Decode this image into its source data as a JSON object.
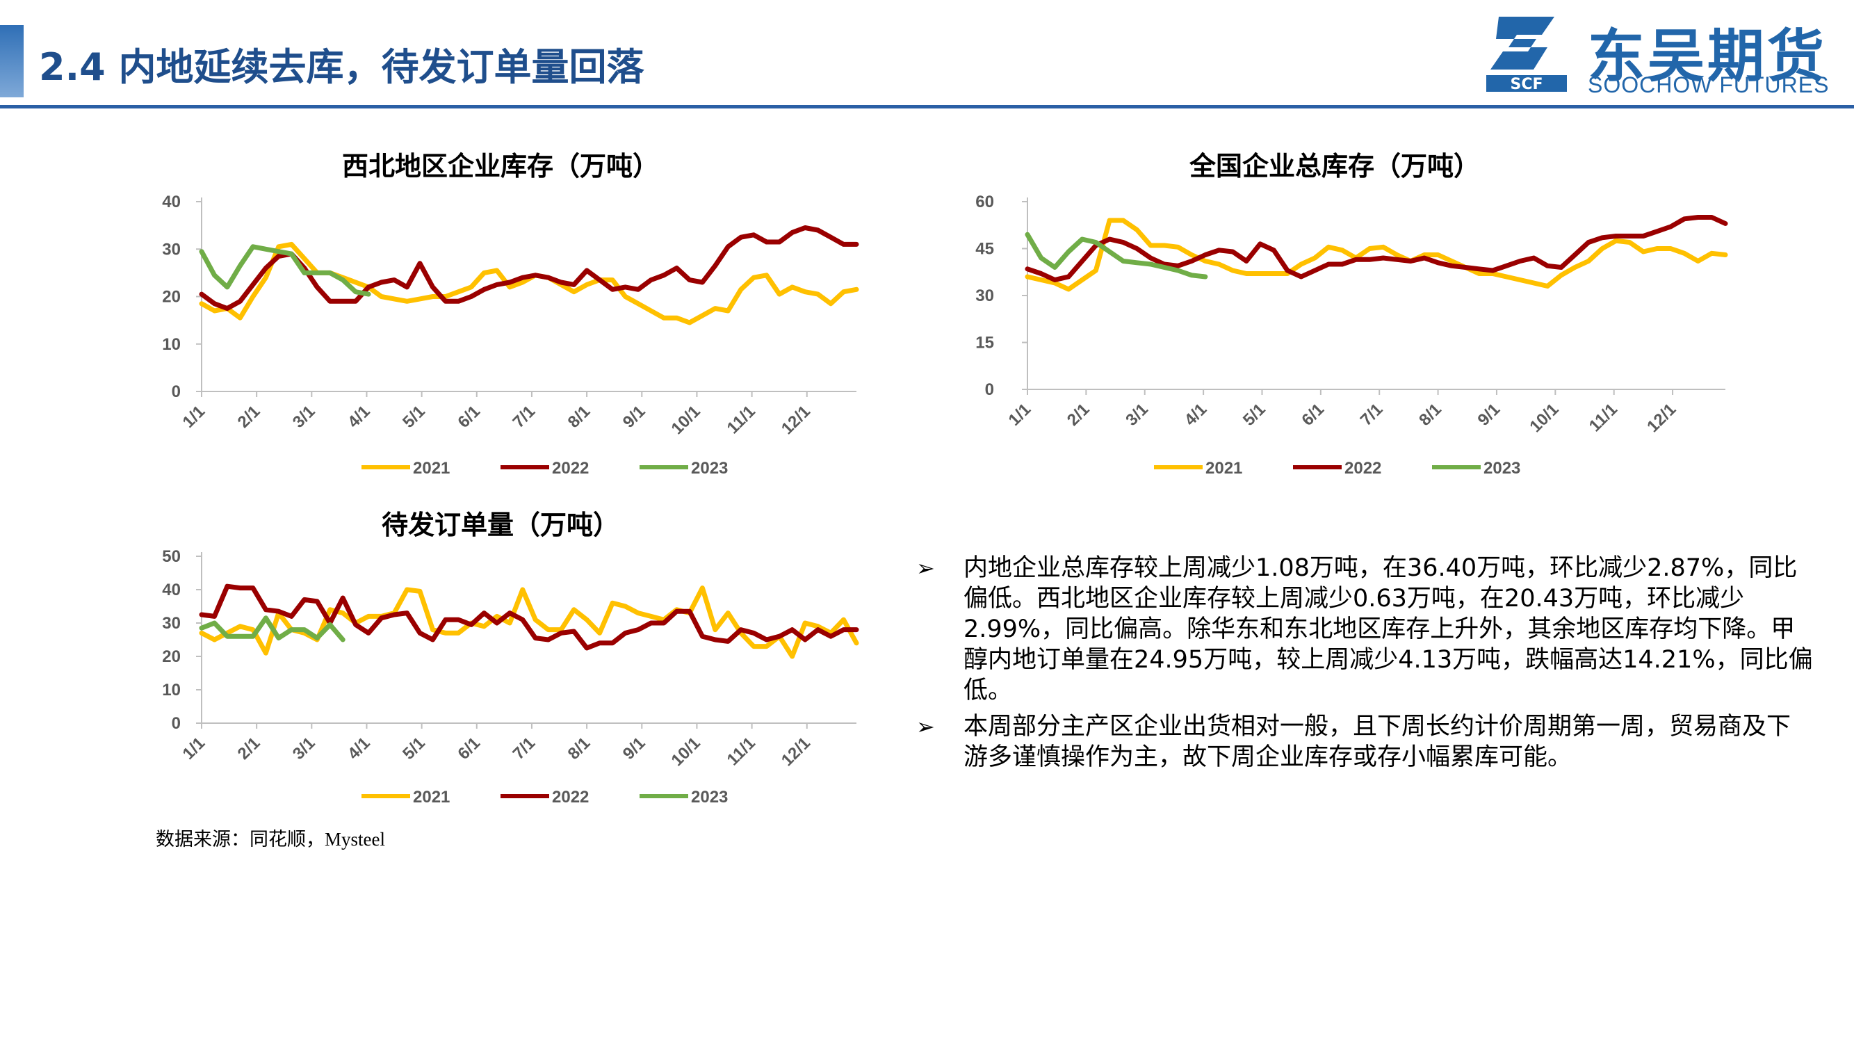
{
  "header": {
    "title": "2.4 内地延续去库，待发订单量回落",
    "logo_cn": "东吴期货",
    "logo_en": "SOOCHOW FUTURES",
    "logo_mark_text": "SCF",
    "accent_color": "#2a5fa5"
  },
  "colors": {
    "2021": "#ffc000",
    "2022": "#9a0000",
    "2023": "#70ad47"
  },
  "chart_data": [
    {
      "id": "northwest",
      "type": "line",
      "title": "西北地区企业库存（万吨）",
      "ylim": [
        0,
        40
      ],
      "yticks": [
        "0",
        "10",
        "20",
        "30",
        "40"
      ],
      "xticks": [
        "1/1",
        "2/1",
        "3/1",
        "4/1",
        "5/1",
        "6/1",
        "7/1",
        "8/1",
        "9/1",
        "10/1",
        "11/1",
        "12/1"
      ],
      "weeks": 52,
      "series": [
        {
          "name": "2021",
          "color": "#ffc000",
          "values": [
            18.5,
            17,
            17.5,
            15.5,
            20,
            24,
            30.5,
            31,
            28,
            25,
            25,
            24,
            23,
            22,
            20,
            19.5,
            19,
            19.5,
            20,
            20,
            21,
            22,
            25,
            25.5,
            22,
            23,
            24.5,
            24,
            22.5,
            21,
            22.5,
            23.5,
            23.5,
            20,
            18.5,
            17,
            15.5,
            15.5,
            14.5,
            16,
            17.5,
            17,
            21.5,
            24,
            24.5,
            20.5,
            22,
            21,
            20.5,
            18.5,
            21,
            21.5
          ]
        },
        {
          "name": "2022",
          "color": "#9a0000",
          "values": [
            20.5,
            18.5,
            17.5,
            19,
            22.5,
            26,
            28.5,
            29,
            26,
            22,
            19,
            19,
            19,
            22,
            23,
            23.5,
            22,
            27,
            22,
            19,
            19,
            20,
            21.5,
            22.5,
            23,
            24,
            24.5,
            24,
            23,
            22.5,
            25.5,
            23.5,
            21.5,
            22,
            21.5,
            23.5,
            24.5,
            26,
            23.5,
            23,
            26.5,
            30.5,
            32.5,
            33,
            31.5,
            31.5,
            33.5,
            34.5,
            34,
            32.5,
            31,
            31
          ]
        },
        {
          "name": "2023",
          "color": "#70ad47",
          "values": [
            29.5,
            24.5,
            22,
            26.5,
            30.5,
            30,
            29.5,
            29,
            25,
            25,
            25,
            23.5,
            21,
            20.5
          ]
        }
      ],
      "legend": [
        "2021",
        "2022",
        "2023"
      ],
      "legend_position": "bottom"
    },
    {
      "id": "national",
      "type": "line",
      "title": "全国企业总库存（万吨）",
      "ylim": [
        0,
        60
      ],
      "yticks": [
        "0",
        "15",
        "30",
        "45",
        "60"
      ],
      "xticks": [
        "1/1",
        "2/1",
        "3/1",
        "4/1",
        "5/1",
        "6/1",
        "7/1",
        "8/1",
        "9/1",
        "10/1",
        "11/1",
        "12/1"
      ],
      "weeks": 52,
      "series": [
        {
          "name": "2021",
          "color": "#ffc000",
          "values": [
            36,
            35,
            34,
            32,
            35,
            38,
            54,
            54,
            51,
            46,
            46,
            45.5,
            43,
            41,
            40,
            38,
            37,
            37,
            37,
            37,
            40,
            42,
            45.5,
            44.5,
            42,
            45,
            45.5,
            43,
            41,
            43,
            43,
            41,
            39,
            37,
            37,
            36,
            35,
            34,
            33,
            36.5,
            39,
            41,
            45,
            47.5,
            47,
            44,
            45,
            45,
            43.5,
            41,
            43.5,
            43
          ]
        },
        {
          "name": "2022",
          "color": "#9a0000",
          "values": [
            38.5,
            37,
            35,
            36,
            41,
            46,
            48,
            47,
            45,
            42,
            40,
            39.5,
            41,
            43,
            44.5,
            44,
            41,
            46.5,
            44.5,
            38,
            36,
            38,
            40,
            40,
            41.5,
            41.5,
            42,
            41.5,
            41,
            42,
            40.5,
            39.5,
            39,
            38.5,
            38,
            39.5,
            41,
            42,
            39.5,
            39,
            43,
            47,
            48.5,
            49,
            49,
            49,
            50.5,
            52,
            54.5,
            55,
            55,
            53
          ]
        },
        {
          "name": "2023",
          "color": "#70ad47",
          "values": [
            49.5,
            42,
            39,
            44,
            48,
            47,
            44,
            41,
            40.5,
            40,
            39,
            38,
            36.5,
            36
          ]
        }
      ],
      "legend": [
        "2021",
        "2022",
        "2023"
      ],
      "legend_position": "bottom"
    },
    {
      "id": "orders",
      "type": "line",
      "title": "待发订单量（万吨）",
      "ylim": [
        0,
        50
      ],
      "yticks": [
        "0",
        "10",
        "20",
        "30",
        "40",
        "50"
      ],
      "xticks": [
        "1/1",
        "2/1",
        "3/1",
        "4/1",
        "5/1",
        "6/1",
        "7/1",
        "8/1",
        "9/1",
        "10/1",
        "11/1",
        "12/1"
      ],
      "weeks": 52,
      "series": [
        {
          "name": "2021",
          "color": "#ffc000",
          "values": [
            27,
            25,
            27,
            29,
            28,
            21,
            33,
            28,
            27,
            25,
            34,
            33,
            30,
            32,
            32,
            33,
            40,
            39.5,
            28,
            27,
            27,
            30,
            29,
            32,
            30,
            40,
            31,
            28,
            28,
            34,
            31,
            27,
            36,
            35,
            33,
            32,
            31,
            34,
            33,
            40.5,
            28,
            33,
            27,
            23,
            23,
            26,
            20,
            30,
            29,
            27,
            31,
            24
          ]
        },
        {
          "name": "2022",
          "color": "#9a0000",
          "values": [
            32.5,
            32,
            41,
            40.5,
            40.5,
            34,
            33.5,
            32,
            37,
            36.5,
            30,
            37.5,
            29.5,
            27,
            31.5,
            32.5,
            33,
            27,
            25,
            31,
            31,
            29.5,
            33,
            30,
            33,
            31,
            25.5,
            25,
            27,
            27.5,
            22.5,
            24,
            24,
            27,
            28,
            30,
            30,
            33.5,
            33.5,
            26,
            25,
            24.5,
            28,
            27,
            25,
            26,
            28,
            25,
            28,
            26,
            28,
            28
          ]
        },
        {
          "name": "2023",
          "color": "#70ad47",
          "values": [
            28.5,
            30,
            26,
            26,
            26,
            31.5,
            25.5,
            28,
            28,
            25.5,
            29.5,
            25
          ]
        }
      ],
      "legend": [
        "2021",
        "2022",
        "2023"
      ],
      "legend_position": "bottom"
    }
  ],
  "source": "数据来源：同花顺，Mysteel",
  "bullets": [
    "内地企业总库存较上周减少1.08万吨，在36.40万吨，环比减少2.87%，同比偏低。西北地区企业库存较上周减少0.63万吨，在20.43万吨，环比减少2.99%，同比偏高。除华东和东北地区库存上升外，其余地区库存均下降。甲醇内地订单量在24.95万吨，较上周减少4.13万吨，跌幅高达14.21%，同比偏低。",
    "本周部分主产区企业出货相对一般，且下周长约计价周期第一周，贸易商及下游多谨慎操作为主，故下周企业库存或存小幅累库可能。"
  ],
  "bullet_symbol": "➢"
}
